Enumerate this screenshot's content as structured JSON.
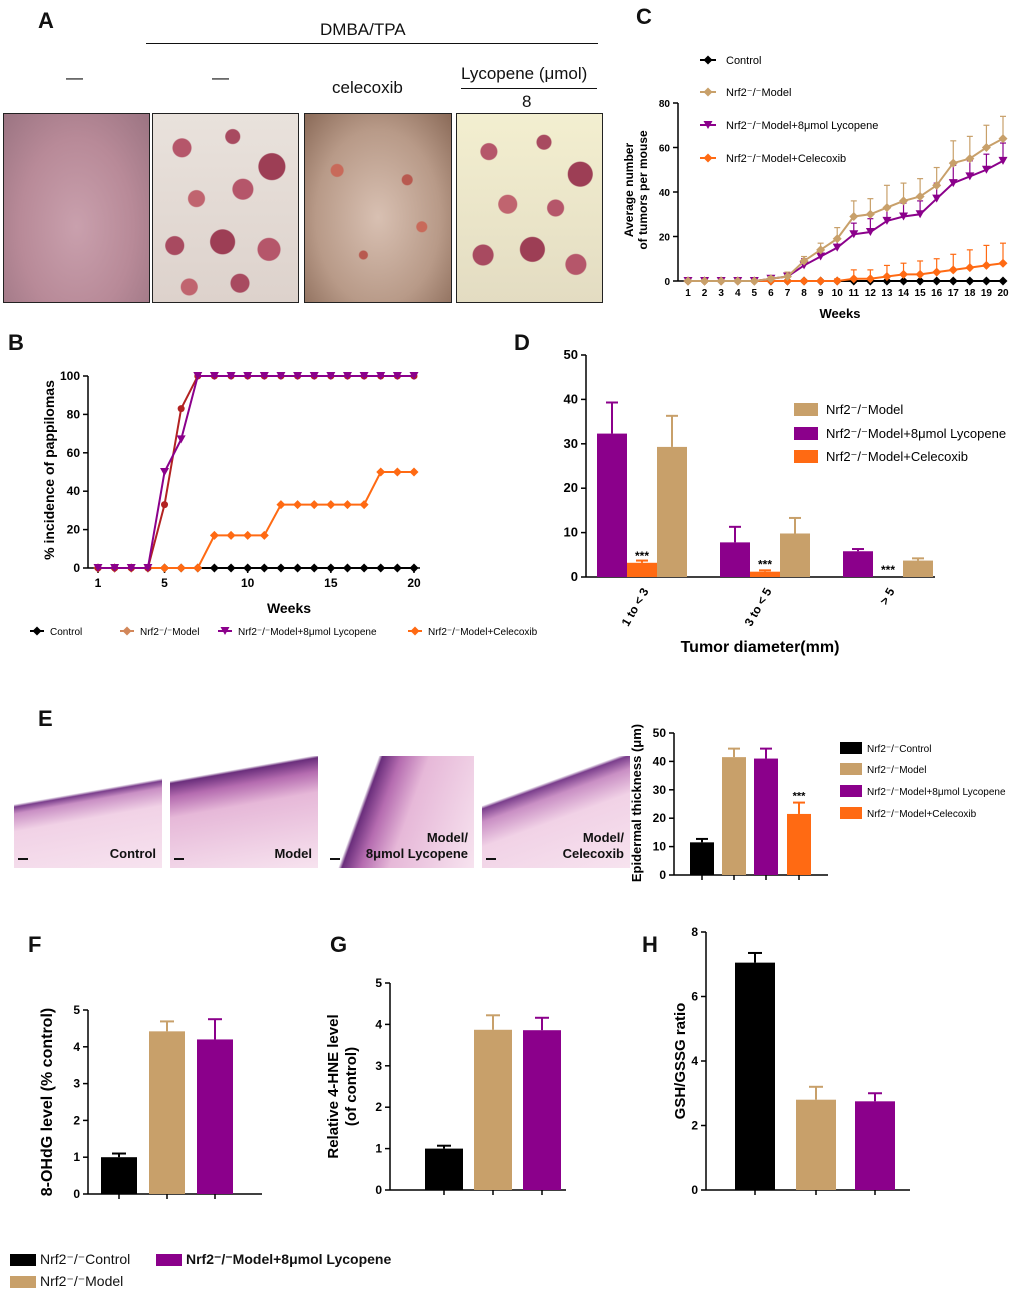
{
  "colors": {
    "control": "#000000",
    "model": "#c8a06a",
    "lycopene": "#8b008b",
    "celecoxib": "#ff6a13",
    "modelB": "#b22222",
    "skin": "#c49aa8",
    "tumor": "#b5566a"
  },
  "panelA": {
    "letter": "A",
    "treatment": "DMBA/TPA",
    "col1": "—",
    "col2": "—",
    "col3": "celecoxib",
    "col4": "Lycopene (μmol)",
    "col4_dose": "8"
  },
  "panelC": {
    "letter": "C",
    "legend": [
      "Control",
      "Nrf2⁻/⁻Model",
      "Nrf2⁻/⁻Model+8μmol Lycopene",
      "Nrf2⁻/⁻Model+Celecoxib"
    ]
  },
  "panelB": {
    "letter": "B",
    "legend": [
      "Control",
      "Nrf2⁻/⁻Model",
      "Nrf2⁻/⁻Model+8μmol Lycopene",
      "Nrf2⁻/⁻Model+Celecoxib"
    ]
  },
  "panelD": {
    "letter": "D",
    "legend": [
      "Nrf2⁻/⁻Model",
      "Nrf2⁻/⁻Model+8μmol Lycopene",
      "Nrf2⁻/⁻Model+Celecoxib"
    ]
  },
  "panelE": {
    "letter": "E",
    "images": [
      {
        "label": "Control"
      },
      {
        "label": "Model"
      },
      {
        "label": "Model/\n8μmol Lycopene"
      },
      {
        "label": "Model/\nCelecoxib"
      }
    ],
    "legend": [
      "Nrf2⁻/⁻Control",
      "Nrf2⁻/⁻Model",
      "Nrf2⁻/⁻Model+8μmol Lycopene",
      "Nrf2⁻/⁻Model+Celecoxib"
    ]
  },
  "panelF": {
    "letter": "F"
  },
  "panelG": {
    "letter": "G"
  },
  "panelH": {
    "letter": "H"
  },
  "bottomLegend": {
    "control": "Nrf2⁻/⁻Control",
    "model": "Nrf2⁻/⁻Model",
    "lycopene": "Nrf2⁻/⁻Model+8μmol Lycopene"
  },
  "chart_data": [
    {
      "id": "C",
      "type": "line",
      "xlabel": "Weeks",
      "ylabel": "Average number\nof tumors per mouse",
      "x": [
        1,
        2,
        3,
        4,
        5,
        6,
        7,
        8,
        9,
        10,
        11,
        12,
        13,
        14,
        15,
        16,
        17,
        18,
        19,
        20
      ],
      "ylim": [
        0,
        80
      ],
      "yticks": [
        0,
        20,
        40,
        60,
        80
      ],
      "series": [
        {
          "name": "Control",
          "color": "control",
          "marker": "diamond",
          "values": [
            0,
            0,
            0,
            0,
            0,
            0,
            0,
            0,
            0,
            0,
            0,
            0,
            0,
            0,
            0,
            0,
            0,
            0,
            0,
            0
          ],
          "errors": [
            0,
            0,
            0,
            0,
            0,
            0,
            0,
            0,
            0,
            0,
            0,
            0,
            0,
            0,
            0,
            0,
            0,
            0,
            0,
            0
          ]
        },
        {
          "name": "Nrf2⁻/⁻Model",
          "color": "model",
          "marker": "diamond",
          "values": [
            0,
            0,
            0,
            0,
            0,
            1,
            2,
            9,
            14,
            19,
            29,
            30,
            33,
            36,
            38,
            43,
            53,
            55,
            60,
            64
          ],
          "errors": [
            0,
            0,
            0,
            0,
            0,
            1,
            2,
            2,
            3,
            5,
            7,
            7,
            10,
            8,
            8,
            8,
            10,
            10,
            10,
            10
          ]
        },
        {
          "name": "Nrf2⁻/⁻Model+8μmol Lycopene",
          "color": "lycopene",
          "marker": "triangle-down",
          "values": [
            0,
            0,
            0,
            0,
            0,
            1,
            2,
            7,
            11,
            15,
            21,
            22,
            27,
            29,
            30,
            37,
            44,
            47,
            50,
            54
          ],
          "errors": [
            0,
            0,
            0,
            0,
            0,
            1,
            2,
            3,
            3,
            4,
            5,
            6,
            6,
            6,
            6,
            7,
            8,
            7,
            7,
            8
          ]
        },
        {
          "name": "Nrf2⁻/⁻Model+Celecoxib",
          "color": "celecoxib",
          "marker": "diamond",
          "values": [
            0,
            0,
            0,
            0,
            0,
            0,
            0,
            0,
            0,
            0,
            1,
            1,
            2,
            3,
            3,
            4,
            5,
            6,
            7,
            8
          ],
          "errors": [
            0,
            0,
            0,
            0,
            0,
            0,
            0,
            0,
            0,
            1,
            4,
            4,
            5,
            5,
            6,
            6,
            7,
            8,
            9,
            9
          ]
        }
      ]
    },
    {
      "id": "B",
      "type": "line",
      "xlabel": "Weeks",
      "ylabel": "% incidence of pappilomas",
      "x": [
        1,
        2,
        3,
        4,
        5,
        6,
        7,
        8,
        9,
        10,
        11,
        12,
        13,
        14,
        15,
        16,
        17,
        18,
        19,
        20
      ],
      "xticks": [
        1,
        5,
        10,
        15,
        20
      ],
      "ylim": [
        0,
        100
      ],
      "yticks": [
        0,
        20,
        40,
        60,
        80,
        100
      ],
      "series": [
        {
          "name": "Control",
          "color": "control",
          "marker": "diamond",
          "values": [
            0,
            0,
            0,
            0,
            0,
            0,
            0,
            0,
            0,
            0,
            0,
            0,
            0,
            0,
            0,
            0,
            0,
            0,
            0,
            0
          ]
        },
        {
          "name": "Nrf2⁻/⁻Model",
          "color": "modelB",
          "marker": "circle",
          "values": [
            0,
            0,
            0,
            0,
            33,
            83,
            100,
            100,
            100,
            100,
            100,
            100,
            100,
            100,
            100,
            100,
            100,
            100,
            100,
            100
          ]
        },
        {
          "name": "Nrf2⁻/⁻Model+8μmol Lycopene",
          "color": "lycopene",
          "marker": "triangle-down",
          "values": [
            0,
            0,
            0,
            0,
            50,
            67,
            100,
            100,
            100,
            100,
            100,
            100,
            100,
            100,
            100,
            100,
            100,
            100,
            100,
            100
          ]
        },
        {
          "name": "Nrf2⁻/⁻Model+Celecoxib",
          "color": "celecoxib",
          "marker": "diamond",
          "values": [
            0,
            0,
            0,
            0,
            0,
            0,
            0,
            17,
            17,
            17,
            17,
            33,
            33,
            33,
            33,
            33,
            33,
            50,
            50,
            50
          ]
        }
      ]
    },
    {
      "id": "D",
      "type": "bar",
      "xlabel": "Tumor diameter(mm)",
      "categories": [
        "1 to < 3",
        "3 to < 5",
        "> 5"
      ],
      "ylim": [
        0,
        50
      ],
      "yticks": [
        0,
        10,
        20,
        30,
        40,
        50
      ],
      "series": [
        {
          "name": "Nrf2⁻/⁻Model+8μmol Lycopene",
          "color": "lycopene",
          "values": [
            32.3,
            7.8,
            5.8
          ],
          "errors": [
            7,
            3.5,
            0.5
          ]
        },
        {
          "name": "Nrf2⁻/⁻Model+Celecoxib",
          "color": "celecoxib",
          "values": [
            3.2,
            1.2,
            0
          ],
          "errors": [
            0.5,
            0.3,
            0
          ]
        },
        {
          "name": "Nrf2⁻/⁻Model",
          "color": "model",
          "values": [
            29.3,
            9.8,
            3.7
          ],
          "errors": [
            7,
            3.5,
            0.5
          ]
        }
      ],
      "annotations": [
        "***",
        "***",
        "***"
      ]
    },
    {
      "id": "E",
      "type": "bar",
      "ylabel": "Epidermal thickness (μm)",
      "categories": [
        "Nrf2⁻/⁻Control",
        "Nrf2⁻/⁻Model",
        "Nrf2⁻/⁻Model+8μmol Lycopene",
        "Nrf2⁻/⁻Model+Celecoxib"
      ],
      "colors": [
        "control",
        "model",
        "lycopene",
        "celecoxib"
      ],
      "values": [
        11.5,
        41.5,
        41,
        21.5
      ],
      "errors": [
        1.2,
        3,
        3.5,
        4
      ],
      "ylim": [
        0,
        50
      ],
      "yticks": [
        0,
        10,
        20,
        30,
        40,
        50
      ],
      "annotation": "***"
    },
    {
      "id": "F",
      "type": "bar",
      "ylabel": "8-OHdG level (% control)",
      "categories": [
        "Nrf2⁻/⁻Control",
        "Nrf2⁻/⁻Model",
        "Nrf2⁻/⁻Model+8μmol Lycopene"
      ],
      "colors": [
        "control",
        "model",
        "lycopene"
      ],
      "values": [
        1.0,
        4.42,
        4.2
      ],
      "errors": [
        0.1,
        0.27,
        0.55
      ],
      "ylim": [
        0,
        5
      ],
      "yticks": [
        0,
        1,
        2,
        3,
        4,
        5
      ]
    },
    {
      "id": "G",
      "type": "bar",
      "ylabel": "Relative 4-HNE level\n(of control)",
      "categories": [
        "Nrf2⁻/⁻Control",
        "Nrf2⁻/⁻Model",
        "Nrf2⁻/⁻Model+8μmol Lycopene"
      ],
      "colors": [
        "control",
        "model",
        "lycopene"
      ],
      "values": [
        1.0,
        3.87,
        3.86
      ],
      "errors": [
        0.07,
        0.35,
        0.3
      ],
      "ylim": [
        0,
        5
      ],
      "yticks": [
        0,
        1,
        2,
        3,
        4,
        5
      ]
    },
    {
      "id": "H",
      "type": "bar",
      "ylabel": "GSH/GSSG ratio",
      "categories": [
        "Nrf2⁻/⁻Control",
        "Nrf2⁻/⁻Model",
        "Nrf2⁻/⁻Model+8μmol Lycopene"
      ],
      "colors": [
        "control",
        "model",
        "lycopene"
      ],
      "values": [
        7.05,
        2.8,
        2.75
      ],
      "errors": [
        0.3,
        0.4,
        0.25
      ],
      "ylim": [
        0,
        8
      ],
      "yticks": [
        0,
        2,
        4,
        6,
        8
      ]
    }
  ]
}
